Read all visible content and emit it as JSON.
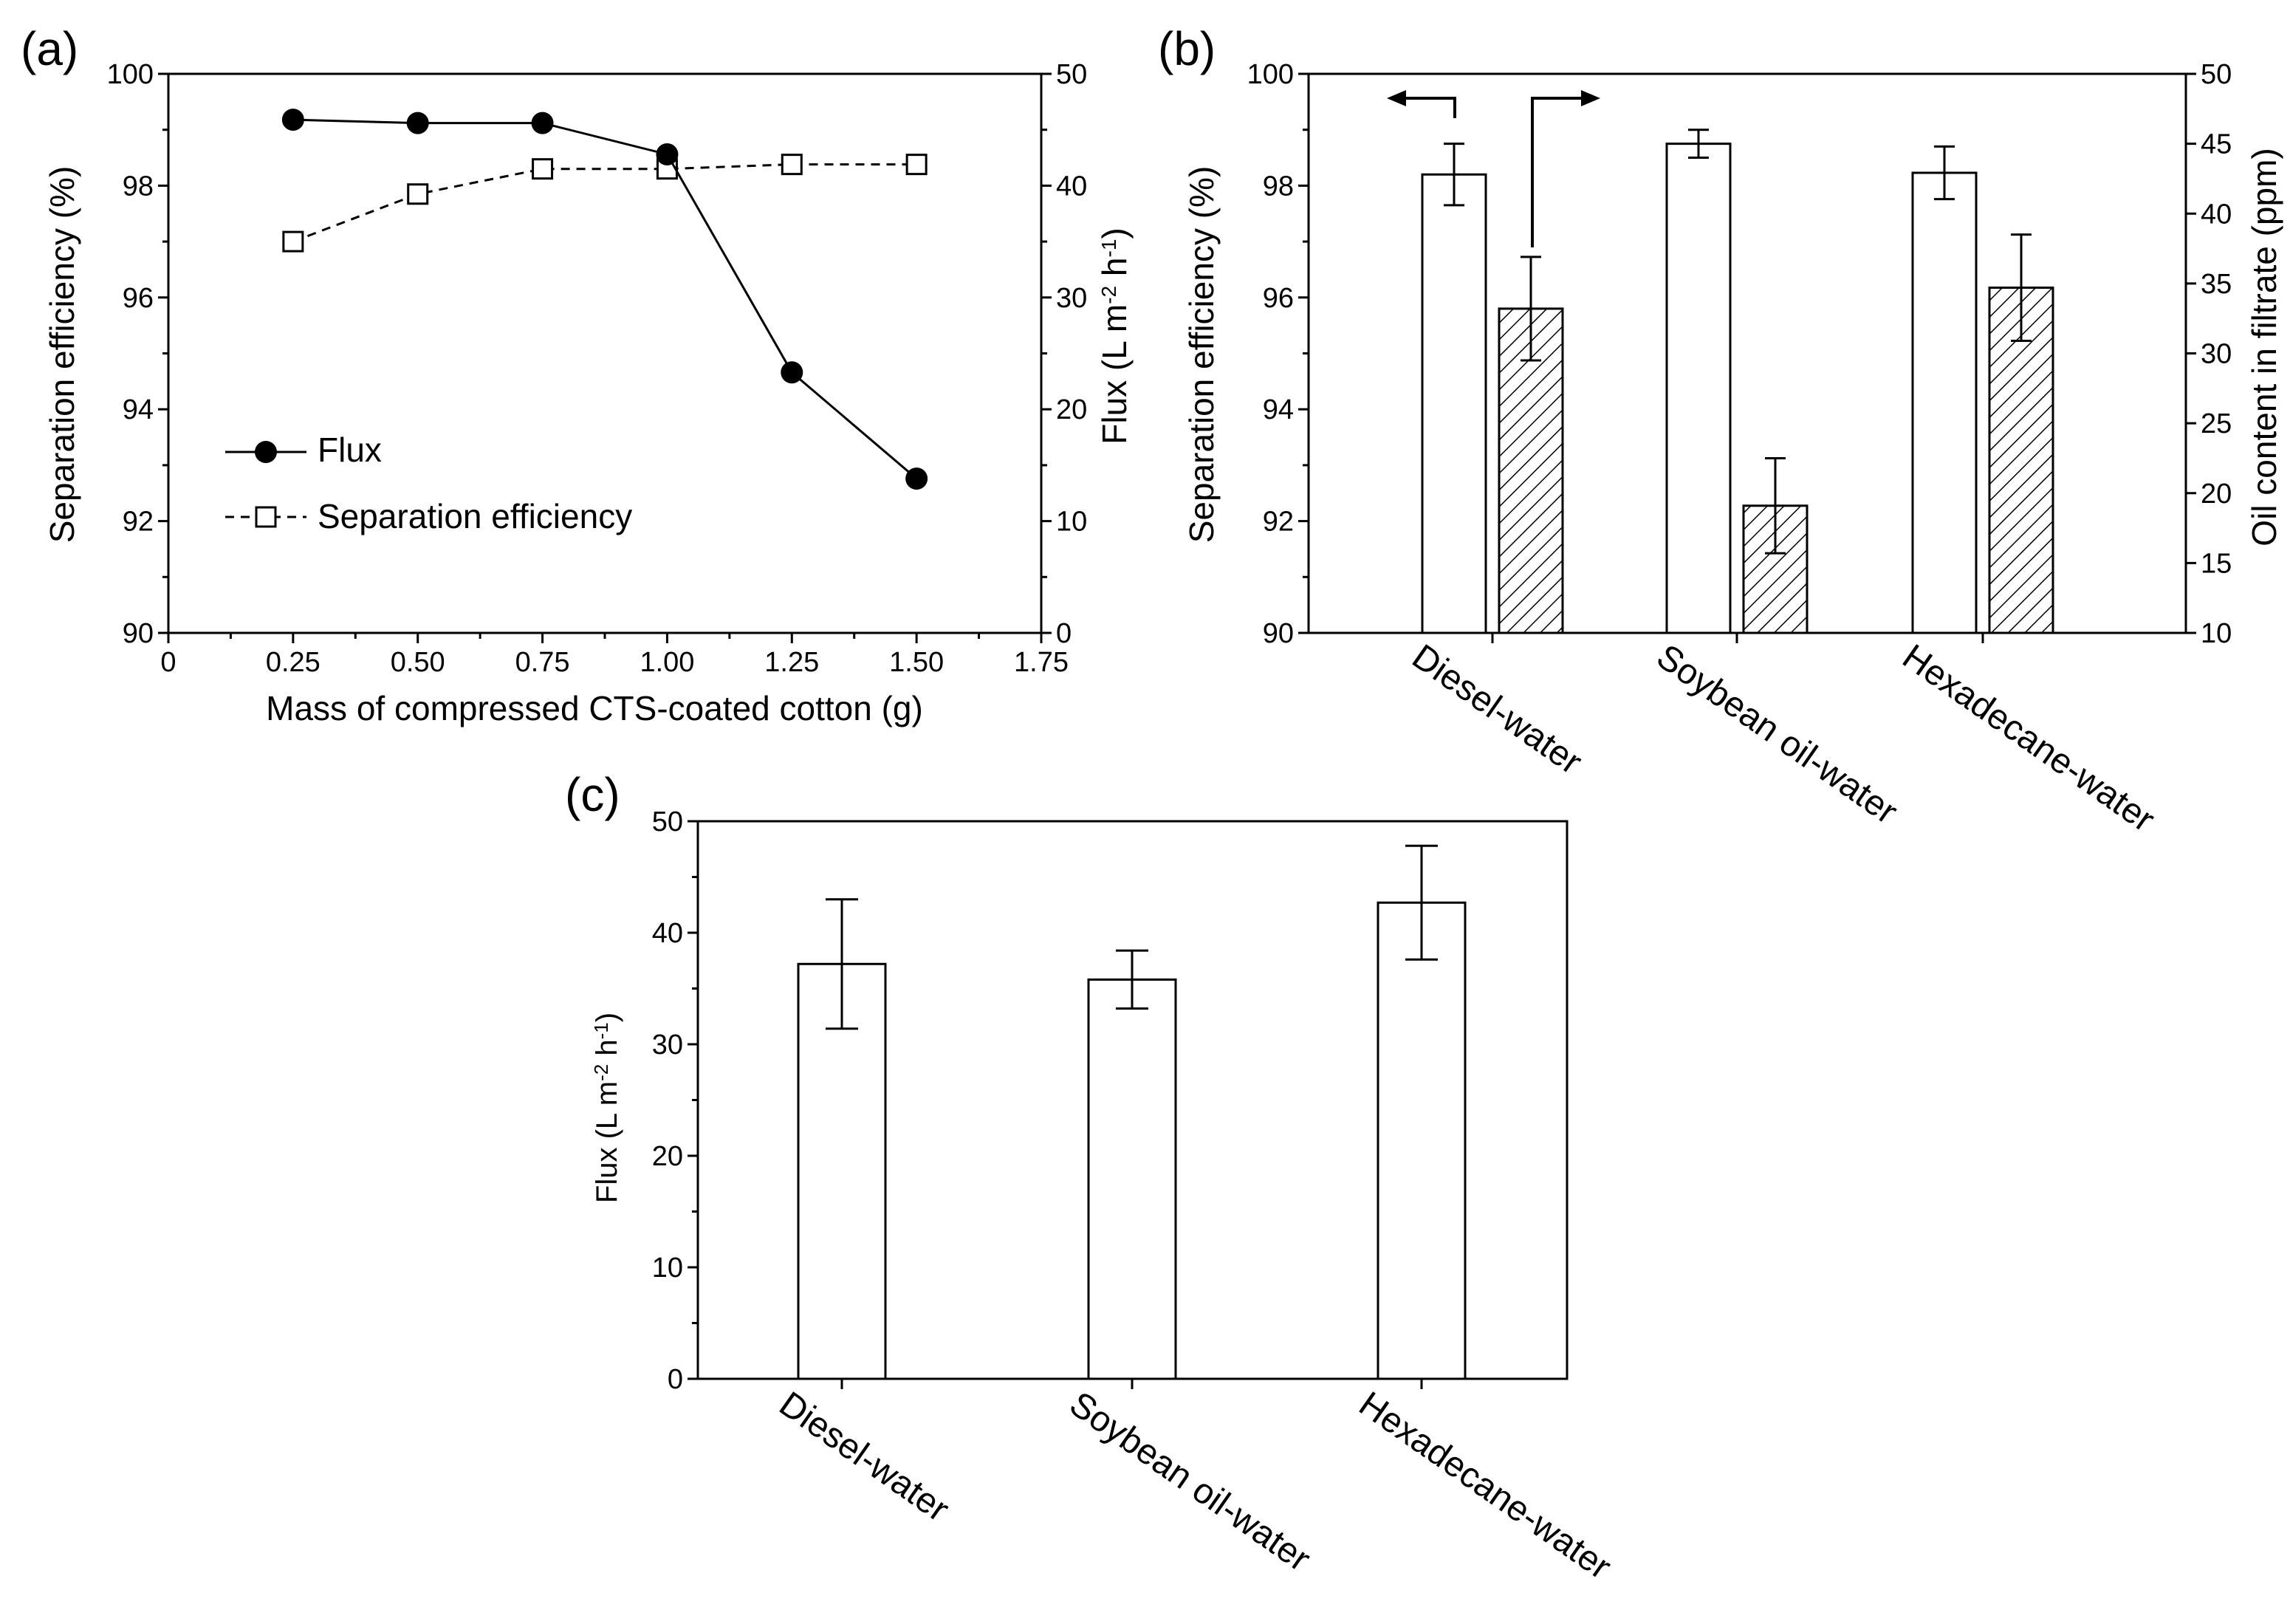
{
  "colors": {
    "ink": "#000000",
    "fill": "#ffffff"
  },
  "panel_labels": {
    "a": "(a)",
    "b": "(b)",
    "c": "(c)"
  },
  "chart_data": [
    {
      "panel": "(a)",
      "type": "line",
      "xlabel": "Mass of compressed CTS-coated cotton (g)",
      "ylabel_left": "Separation efficiency (%)",
      "ylabel_right": "Flux (L m-2 h-1)",
      "xlim": [
        0,
        1.75
      ],
      "ylim_left": [
        90,
        100
      ],
      "ylim_right": [
        0,
        50
      ],
      "x_ticks": [
        "0",
        "0.25",
        "0.50",
        "0.75",
        "1.00",
        "1.25",
        "1.50",
        "1.75"
      ],
      "y_ticks_left": [
        "90",
        "92",
        "94",
        "96",
        "98",
        "100"
      ],
      "y_ticks_right": [
        "0",
        "10",
        "20",
        "30",
        "40",
        "50"
      ],
      "series": [
        {
          "name": "Flux",
          "axis": "right",
          "marker": "filled-circle",
          "line": "solid",
          "x": [
            0.25,
            0.5,
            0.75,
            1.0,
            1.25,
            1.5
          ],
          "y": [
            45.9,
            45.6,
            45.6,
            42.8,
            23.3,
            13.8
          ]
        },
        {
          "name": "Separation efficiency",
          "axis": "left",
          "marker": "open-square",
          "line": "dashed",
          "x": [
            0.25,
            0.5,
            0.75,
            1.0,
            1.25,
            1.5
          ],
          "y": [
            97.0,
            97.85,
            98.3,
            98.3,
            98.38,
            98.38
          ]
        }
      ],
      "legend": [
        "Flux",
        "Separation efficiency"
      ]
    },
    {
      "panel": "(b)",
      "type": "bar",
      "ylabel_left": "Separation efficiency (%)",
      "ylabel_right": "Oil content in filtrate (ppm)",
      "categories": [
        "Diesel-water",
        "Soybean oil-water",
        "Hexadecane-water"
      ],
      "ylim_left": [
        90,
        100
      ],
      "ylim_right": [
        10,
        50
      ],
      "y_ticks_left": [
        "90",
        "92",
        "94",
        "96",
        "98",
        "100"
      ],
      "y_ticks_right": [
        "10",
        "15",
        "20",
        "25",
        "30",
        "35",
        "40",
        "45",
        "50"
      ],
      "series": [
        {
          "name": "Separation efficiency",
          "axis": "left",
          "pattern": "open",
          "values": [
            98.2,
            98.75,
            98.23
          ],
          "errors": [
            0.55,
            0.25,
            0.47
          ]
        },
        {
          "name": "Oil content in filtrate",
          "axis": "right",
          "pattern": "hatched",
          "values": [
            33.2,
            19.1,
            34.7
          ],
          "errors": [
            3.7,
            3.4,
            3.8
          ]
        }
      ]
    },
    {
      "panel": "(c)",
      "type": "bar",
      "ylabel": "Flux (L m-2 h-1)",
      "categories": [
        "Diesel-water",
        "Soybean oil-water",
        "Hexadecane-water"
      ],
      "ylim": [
        0,
        50
      ],
      "y_ticks": [
        "0",
        "10",
        "20",
        "30",
        "40",
        "50"
      ],
      "series": [
        {
          "name": "Flux",
          "pattern": "open",
          "values": [
            37.2,
            35.8,
            42.7
          ],
          "errors": [
            5.8,
            2.6,
            5.1
          ]
        }
      ]
    }
  ]
}
